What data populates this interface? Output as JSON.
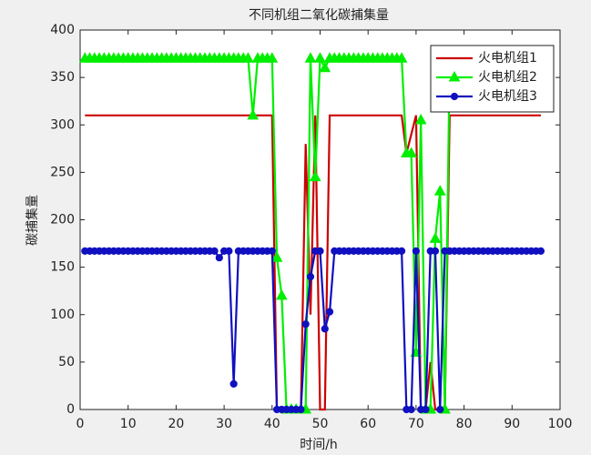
{
  "chart_data": {
    "type": "line",
    "title": "不同机组二氧化碳捕集量",
    "x_label": "时间/h",
    "y_label": "碳捕集量",
    "xlim": [
      0,
      100
    ],
    "xticks": [
      0,
      10,
      20,
      30,
      40,
      50,
      60,
      70,
      80,
      90,
      100
    ],
    "ylim": [
      0,
      400
    ],
    "yticks": [
      0,
      50,
      100,
      150,
      200,
      250,
      300,
      350,
      400
    ],
    "legend": "northeast",
    "x": [
      1,
      2,
      3,
      4,
      5,
      6,
      7,
      8,
      9,
      10,
      11,
      12,
      13,
      14,
      15,
      16,
      17,
      18,
      19,
      20,
      21,
      22,
      23,
      24,
      25,
      26,
      27,
      28,
      29,
      30,
      31,
      32,
      33,
      34,
      35,
      36,
      37,
      38,
      39,
      40,
      41,
      42,
      43,
      44,
      45,
      46,
      47,
      48,
      49,
      50,
      51,
      52,
      53,
      54,
      55,
      56,
      57,
      58,
      59,
      60,
      61,
      62,
      63,
      64,
      65,
      66,
      67,
      68,
      69,
      70,
      71,
      72,
      73,
      74,
      75,
      76,
      77,
      78,
      79,
      80,
      81,
      82,
      83,
      84,
      85,
      86,
      87,
      88,
      89,
      90,
      91,
      92,
      93,
      94,
      95,
      96
    ],
    "series": [
      {
        "name": "火电机组1",
        "color": "#cc0000",
        "marker": "none",
        "values": [
          310,
          310,
          310,
          310,
          310,
          310,
          310,
          310,
          310,
          310,
          310,
          310,
          310,
          310,
          310,
          310,
          310,
          310,
          310,
          310,
          310,
          310,
          310,
          310,
          310,
          310,
          310,
          310,
          310,
          310,
          310,
          310,
          310,
          310,
          310,
          310,
          310,
          310,
          310,
          310,
          0,
          0,
          0,
          0,
          0,
          0,
          280,
          100,
          310,
          0,
          0,
          310,
          310,
          310,
          310,
          310,
          310,
          310,
          310,
          310,
          310,
          310,
          310,
          310,
          310,
          310,
          310,
          270,
          290,
          310,
          0,
          0,
          50,
          0,
          0,
          0,
          310,
          310,
          310,
          310,
          310,
          310,
          310,
          310,
          310,
          310,
          310,
          310,
          310,
          310,
          310,
          310,
          310,
          310,
          310,
          310
        ]
      },
      {
        "name": "火电机组2",
        "color": "#00ee00",
        "marker": "triangle",
        "values": [
          370,
          370,
          370,
          370,
          370,
          370,
          370,
          370,
          370,
          370,
          370,
          370,
          370,
          370,
          370,
          370,
          370,
          370,
          370,
          370,
          370,
          370,
          370,
          370,
          370,
          370,
          370,
          370,
          370,
          370,
          370,
          370,
          370,
          370,
          370,
          310,
          370,
          370,
          370,
          370,
          160,
          120,
          0,
          0,
          0,
          0,
          0,
          370,
          245,
          370,
          360,
          370,
          370,
          370,
          370,
          370,
          370,
          370,
          370,
          370,
          370,
          370,
          370,
          370,
          370,
          370,
          370,
          270,
          270,
          60,
          305,
          0,
          0,
          180,
          230,
          0,
          370,
          370,
          370,
          370,
          370,
          370,
          370,
          370,
          370,
          370,
          370,
          370,
          370,
          370,
          370,
          370,
          370,
          370,
          370,
          370
        ]
      },
      {
        "name": "火电机组3",
        "color": "#1010c0",
        "marker": "circle",
        "values": [
          167,
          167,
          167,
          167,
          167,
          167,
          167,
          167,
          167,
          167,
          167,
          167,
          167,
          167,
          167,
          167,
          167,
          167,
          167,
          167,
          167,
          167,
          167,
          167,
          167,
          167,
          167,
          167,
          160,
          167,
          167,
          27,
          167,
          167,
          167,
          167,
          167,
          167,
          167,
          167,
          0,
          0,
          0,
          0,
          0,
          0,
          90,
          140,
          167,
          167,
          85,
          103,
          167,
          167,
          167,
          167,
          167,
          167,
          167,
          167,
          167,
          167,
          167,
          167,
          167,
          167,
          167,
          0,
          0,
          167,
          0,
          0,
          167,
          167,
          0,
          167,
          167,
          167,
          167,
          167,
          167,
          167,
          167,
          167,
          167,
          167,
          167,
          167,
          167,
          167,
          167,
          167,
          167,
          167,
          167,
          167
        ]
      }
    ]
  }
}
